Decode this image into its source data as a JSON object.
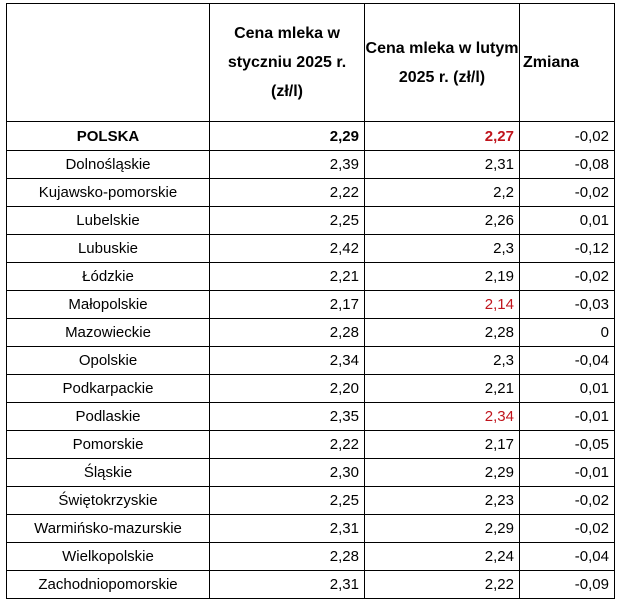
{
  "table": {
    "headers": {
      "region": "",
      "jan": "Cena mleka w styczniu 2025 r. (zł/l)",
      "feb": "Cena mleka w lutym 2025 r. (zł/l)",
      "change": "Zmiana"
    },
    "highlight_color": "#c0141c",
    "rows": [
      {
        "region": "POLSKA",
        "jan": "2,29",
        "feb": "2,27",
        "change": "-0,02",
        "feb_highlight": true,
        "bold": true
      },
      {
        "region": "Dolnośląskie",
        "jan": "2,39",
        "feb": "2,31",
        "change": "-0,08",
        "feb_highlight": false,
        "bold": false
      },
      {
        "region": "Kujawsko-pomorskie",
        "jan": "2,22",
        "feb": "2,2",
        "change": "-0,02",
        "feb_highlight": false,
        "bold": false
      },
      {
        "region": "Lubelskie",
        "jan": "2,25",
        "feb": "2,26",
        "change": "0,01",
        "feb_highlight": false,
        "bold": false
      },
      {
        "region": "Lubuskie",
        "jan": "2,42",
        "feb": "2,3",
        "change": "-0,12",
        "feb_highlight": false,
        "bold": false
      },
      {
        "region": "Łódzkie",
        "jan": "2,21",
        "feb": "2,19",
        "change": "-0,02",
        "feb_highlight": false,
        "bold": false
      },
      {
        "region": "Małopolskie",
        "jan": "2,17",
        "feb": "2,14",
        "change": "-0,03",
        "feb_highlight": true,
        "bold": false
      },
      {
        "region": "Mazowieckie",
        "jan": "2,28",
        "feb": "2,28",
        "change": "0",
        "feb_highlight": false,
        "bold": false
      },
      {
        "region": "Opolskie",
        "jan": "2,34",
        "feb": "2,3",
        "change": "-0,04",
        "feb_highlight": false,
        "bold": false
      },
      {
        "region": "Podkarpackie",
        "jan": "2,20",
        "feb": "2,21",
        "change": "0,01",
        "feb_highlight": false,
        "bold": false
      },
      {
        "region": "Podlaskie",
        "jan": "2,35",
        "feb": "2,34",
        "change": "-0,01",
        "feb_highlight": true,
        "bold": false
      },
      {
        "region": "Pomorskie",
        "jan": "2,22",
        "feb": "2,17",
        "change": "-0,05",
        "feb_highlight": false,
        "bold": false
      },
      {
        "region": "Śląskie",
        "jan": "2,30",
        "feb": "2,29",
        "change": "-0,01",
        "feb_highlight": false,
        "bold": false
      },
      {
        "region": "Świętokrzyskie",
        "jan": "2,25",
        "feb": "2,23",
        "change": "-0,02",
        "feb_highlight": false,
        "bold": false
      },
      {
        "region": "Warmińsko-mazurskie",
        "jan": "2,31",
        "feb": "2,29",
        "change": "-0,02",
        "feb_highlight": false,
        "bold": false
      },
      {
        "region": "Wielkopolskie",
        "jan": "2,28",
        "feb": "2,24",
        "change": "-0,04",
        "feb_highlight": false,
        "bold": false
      },
      {
        "region": "Zachodniopomorskie",
        "jan": "2,31",
        "feb": "2,22",
        "change": "-0,09",
        "feb_highlight": false,
        "bold": false
      }
    ]
  }
}
